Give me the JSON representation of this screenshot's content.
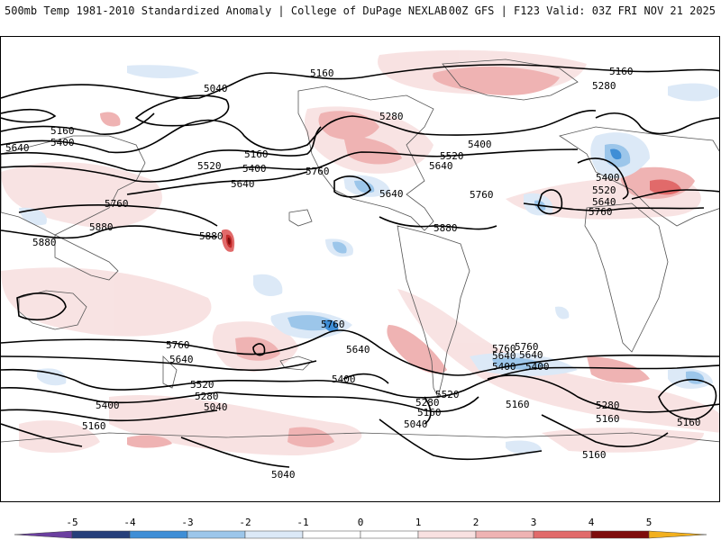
{
  "header": {
    "title": "500mb Temp 1981-2010 Standardized Anomaly | College of DuPage NEXLAB",
    "run_info": "00Z GFS | F123 Valid: 03Z FRI NOV 21 2025"
  },
  "colors": {
    "neg5": "#6b3fa0",
    "neg4": "#263f7a",
    "neg3": "#3f8ed6",
    "neg2": "#9cc6ea",
    "neg1": "#dce9f7",
    "pos1": "#f8e1e1",
    "pos2": "#efb3b3",
    "pos3": "#e16a6a",
    "pos4": "#c32a2a",
    "pos5": "#7e0c0c",
    "extreme": "#f2b01e",
    "contour": "#000000"
  },
  "contour_labels": [
    {
      "id": "c1",
      "text": "5160"
    },
    {
      "id": "c2",
      "text": "5160"
    },
    {
      "id": "c3",
      "text": "5040"
    },
    {
      "id": "c4",
      "text": "5280"
    },
    {
      "id": "c5",
      "text": "5280"
    },
    {
      "id": "c6",
      "text": "5160"
    },
    {
      "id": "c7",
      "text": "5160"
    },
    {
      "id": "c8",
      "text": "5400"
    },
    {
      "id": "c9",
      "text": "5400"
    },
    {
      "id": "c10",
      "text": "5520"
    },
    {
      "id": "c11",
      "text": "5640"
    },
    {
      "id": "c12",
      "text": "5640"
    },
    {
      "id": "c13",
      "text": "5760"
    },
    {
      "id": "c14",
      "text": "5760"
    },
    {
      "id": "c15",
      "text": "5880"
    },
    {
      "id": "c16",
      "text": "5880"
    },
    {
      "id": "c17",
      "text": "5880"
    },
    {
      "id": "c18",
      "text": "5400"
    },
    {
      "id": "c19",
      "text": "5520"
    },
    {
      "id": "c20",
      "text": "5640"
    },
    {
      "id": "c21",
      "text": "5640"
    },
    {
      "id": "c22",
      "text": "5760"
    },
    {
      "id": "c23",
      "text": "5880"
    },
    {
      "id": "c24",
      "text": "5400"
    },
    {
      "id": "c25",
      "text": "5520"
    },
    {
      "id": "c26",
      "text": "5640"
    },
    {
      "id": "c27",
      "text": "5760"
    },
    {
      "id": "c28",
      "text": "5760"
    },
    {
      "id": "c29",
      "text": "5640"
    },
    {
      "id": "c30",
      "text": "5760"
    },
    {
      "id": "c31",
      "text": "5640"
    },
    {
      "id": "c32",
      "text": "5520"
    },
    {
      "id": "c33",
      "text": "5280"
    },
    {
      "id": "c34",
      "text": "5040"
    },
    {
      "id": "c35",
      "text": "5400"
    },
    {
      "id": "c36",
      "text": "5160"
    },
    {
      "id": "c37",
      "text": "5760"
    },
    {
      "id": "c38",
      "text": "5640"
    },
    {
      "id": "c39",
      "text": "5400"
    },
    {
      "id": "c40",
      "text": "5520"
    },
    {
      "id": "c41",
      "text": "5280"
    },
    {
      "id": "c42",
      "text": "5160"
    },
    {
      "id": "c43",
      "text": "5040"
    },
    {
      "id": "c44",
      "text": "5400"
    },
    {
      "id": "c45",
      "text": "5760"
    },
    {
      "id": "c46",
      "text": "5640"
    },
    {
      "id": "c47",
      "text": "5400"
    },
    {
      "id": "c48",
      "text": "5280"
    },
    {
      "id": "c49",
      "text": "5160"
    },
    {
      "id": "c50",
      "text": "5160"
    },
    {
      "id": "c51",
      "text": "5160"
    },
    {
      "id": "c52",
      "text": "5040"
    },
    {
      "id": "c53",
      "text": "5160"
    }
  ],
  "colorbar": {
    "ticks": [
      "-5",
      "-4",
      "-3",
      "-2",
      "-1",
      "0",
      "1",
      "2",
      "3",
      "4",
      "5"
    ]
  }
}
